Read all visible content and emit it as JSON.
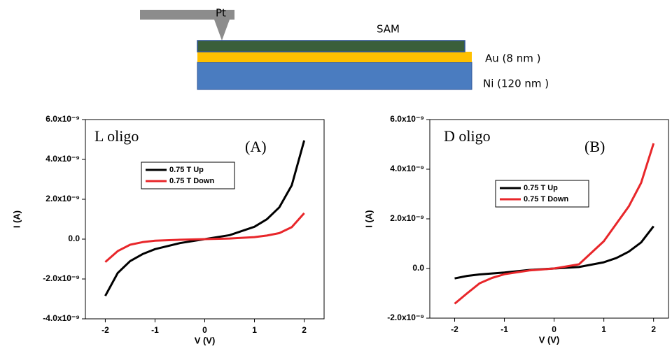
{
  "diagram": {
    "tip_label": "Pt",
    "layers": [
      {
        "label": "SAM"
      },
      {
        "label": "Au (8 nm )"
      },
      {
        "label": "Ni (120 nm )"
      }
    ]
  },
  "chart_data": [
    {
      "type": "line",
      "annotations": [
        "L oligo",
        "(A)"
      ],
      "x_label": "V (V)",
      "y_label": "I (A)",
      "x": [
        -2,
        -1.75,
        -1.5,
        -1.25,
        -1,
        -0.5,
        0,
        0.5,
        1,
        1.25,
        1.5,
        1.75,
        2
      ],
      "series": [
        {
          "name": "0.75 T Up",
          "color": "#000000",
          "values": [
            -2.85e-09,
            -1.7e-09,
            -1.1e-09,
            -7.5e-10,
            -5e-10,
            -2e-10,
            0,
            2e-10,
            6.2e-10,
            1e-09,
            1.6e-09,
            2.7e-09,
            4.95e-09
          ]
        },
        {
          "name": "0.75 T Down",
          "color": "#e8262a",
          "values": [
            -1.15e-09,
            -6e-10,
            -2.8e-10,
            -1.5e-10,
            -8e-11,
            -3e-11,
            0,
            3e-11,
            1e-10,
            1.8e-10,
            3e-10,
            6e-10,
            1.3e-09
          ]
        }
      ],
      "xlim": [
        -2.4,
        2.4
      ],
      "xticks": [
        -2,
        -1,
        0,
        1,
        2
      ],
      "ylim": [
        -4e-09,
        6e-09
      ],
      "yticks": [
        {
          "value": -4e-09,
          "label": "-4.0x10⁻⁹"
        },
        {
          "value": -2e-09,
          "label": "-2.0x10⁻⁹"
        },
        {
          "value": 0,
          "label": "0.0"
        },
        {
          "value": 2e-09,
          "label": "2.0x10⁻⁹"
        },
        {
          "value": 4e-09,
          "label": "4.0x10⁻⁹"
        },
        {
          "value": 6e-09,
          "label": "6.0x10⁻⁹"
        }
      ]
    },
    {
      "type": "line",
      "annotations": [
        "D oligo",
        "(B)"
      ],
      "x_label": "V (V)",
      "y_label": "I (A)",
      "x": [
        -2,
        -1.75,
        -1.5,
        -1.25,
        -1,
        -0.5,
        0,
        0.5,
        1,
        1.25,
        1.5,
        1.75,
        2
      ],
      "series": [
        {
          "name": "0.75 T Up",
          "color": "#000000",
          "values": [
            -4e-10,
            -3e-10,
            -2.4e-10,
            -2e-10,
            -1.6e-10,
            -6e-11,
            0,
            6e-11,
            2.5e-10,
            4.2e-10,
            6.8e-10,
            1.05e-09,
            1.7e-09
          ]
        },
        {
          "name": "0.75 T Down",
          "color": "#e8262a",
          "values": [
            -1.42e-09,
            -1e-09,
            -6e-10,
            -3.8e-10,
            -2.3e-10,
            -8e-11,
            0,
            1.7e-10,
            1.1e-09,
            1.8e-09,
            2.5e-09,
            3.45e-09,
            5.04e-09
          ]
        }
      ],
      "xlim": [
        -2.5,
        2.3
      ],
      "xticks": [
        -2,
        -1,
        0,
        1,
        2
      ],
      "ylim": [
        -2e-09,
        6e-09
      ],
      "yticks": [
        {
          "value": -2e-09,
          "label": "-2.0x10⁻⁹"
        },
        {
          "value": 0,
          "label": "0.0"
        },
        {
          "value": 2e-09,
          "label": "2.0x10⁻⁹"
        },
        {
          "value": 4e-09,
          "label": "4.0x10⁻⁹"
        },
        {
          "value": 6e-09,
          "label": "6.0x10⁻⁹"
        }
      ]
    }
  ]
}
